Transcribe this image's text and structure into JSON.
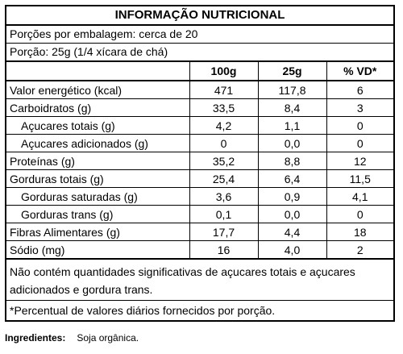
{
  "label": {
    "title": "INFORMAÇÃO NUTRICIONAL",
    "servings_per_package": "Porções por embalagem: cerca de 20",
    "serving_size": "Porção: 25g (1/4 xícara de chá)",
    "columns": [
      "100g",
      "25g",
      "% VD*"
    ],
    "rows": [
      {
        "name": "Valor energético (kcal)",
        "v100": "471",
        "v25": "117,8",
        "vd": "6",
        "indent": false
      },
      {
        "name": "Carboidratos (g)",
        "v100": "33,5",
        "v25": "8,4",
        "vd": "3",
        "indent": false
      },
      {
        "name": "Açucares totais (g)",
        "v100": "4,2",
        "v25": "1,1",
        "vd": "0",
        "indent": true
      },
      {
        "name": "Açucares adicionados (g)",
        "v100": "0",
        "v25": "0,0",
        "vd": "0",
        "indent": true
      },
      {
        "name": "Proteínas (g)",
        "v100": "35,2",
        "v25": "8,8",
        "vd": "12",
        "indent": false
      },
      {
        "name": "Gorduras totais (g)",
        "v100": "25,4",
        "v25": "6,4",
        "vd": "11,5",
        "indent": false
      },
      {
        "name": "Gorduras saturadas (g)",
        "v100": "3,6",
        "v25": "0,9",
        "vd": "4,1",
        "indent": true
      },
      {
        "name": "Gorduras trans (g)",
        "v100": "0,1",
        "v25": "0,0",
        "vd": "0",
        "indent": true
      },
      {
        "name": "Fibras Alimentares (g)",
        "v100": "17,7",
        "v25": "4,4",
        "vd": "18",
        "indent": false
      },
      {
        "name": "Sódio (mg)",
        "v100": "16",
        "v25": "4,0",
        "vd": "2",
        "indent": false
      }
    ],
    "note": "Não contém quantidades significativas de açucares totais e açucares adicionados e gordura trans.",
    "footnote": "*Percentual de valores diários fornecidos por porção."
  },
  "ingredients": {
    "label": "Ingredientes:",
    "value": "Soja orgânica."
  }
}
